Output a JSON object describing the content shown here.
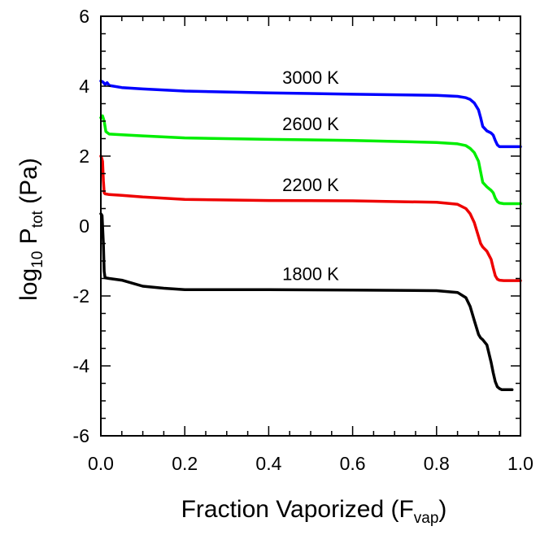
{
  "chart_data": {
    "type": "line",
    "xlim": [
      0.0,
      1.0
    ],
    "ylim": [
      -6,
      6
    ],
    "grid": false,
    "x_ticks": [
      0.0,
      0.2,
      0.4,
      0.6,
      0.8,
      1.0
    ],
    "x_tick_labels": [
      "0.0",
      "0.2",
      "0.4",
      "0.6",
      "0.8",
      "1.0"
    ],
    "y_ticks": [
      -6,
      -4,
      -2,
      0,
      2,
      4,
      6
    ],
    "y_tick_labels": [
      "-6",
      "-4",
      "-2",
      "0",
      "2",
      "4",
      "6"
    ],
    "xlabel": {
      "main": "Fraction Vaporized (F",
      "sub": "vap",
      "end": ")"
    },
    "ylabel": {
      "pre": "log",
      "sub1": "10",
      "mid": " P",
      "sub2": "tot",
      "end": " (Pa)"
    },
    "series": [
      {
        "name": "3000 K",
        "color": "#0000ff",
        "x": [
          0.0,
          0.005,
          0.01,
          0.015,
          0.02,
          0.05,
          0.1,
          0.2,
          0.4,
          0.6,
          0.8,
          0.85,
          0.87,
          0.88,
          0.89,
          0.9,
          0.905,
          0.91,
          0.92,
          0.93,
          0.935,
          0.94,
          0.945,
          0.95,
          1.0
        ],
        "y": [
          4.15,
          4.12,
          4.05,
          4.1,
          4.02,
          3.96,
          3.92,
          3.86,
          3.81,
          3.77,
          3.74,
          3.71,
          3.67,
          3.62,
          3.52,
          3.32,
          3.1,
          2.85,
          2.72,
          2.66,
          2.6,
          2.45,
          2.32,
          2.27,
          2.27
        ]
      },
      {
        "name": "2600 K",
        "color": "#00ee00",
        "x": [
          0.0,
          0.004,
          0.008,
          0.012,
          0.02,
          0.05,
          0.1,
          0.2,
          0.4,
          0.6,
          0.8,
          0.85,
          0.87,
          0.88,
          0.89,
          0.9,
          0.905,
          0.91,
          0.92,
          0.93,
          0.935,
          0.94,
          0.945,
          0.95,
          0.96,
          1.0
        ],
        "y": [
          3.1,
          3.15,
          3.0,
          2.7,
          2.63,
          2.61,
          2.58,
          2.52,
          2.48,
          2.45,
          2.39,
          2.35,
          2.3,
          2.22,
          2.1,
          1.85,
          1.55,
          1.25,
          1.12,
          1.02,
          0.95,
          0.8,
          0.7,
          0.66,
          0.64,
          0.64
        ]
      },
      {
        "name": "2200 K",
        "color": "#ee0000",
        "x": [
          0.0,
          0.002,
          0.004,
          0.006,
          0.008,
          0.01,
          0.02,
          0.05,
          0.1,
          0.2,
          0.4,
          0.6,
          0.8,
          0.85,
          0.87,
          0.88,
          0.89,
          0.9,
          0.905,
          0.91,
          0.92,
          0.93,
          0.935,
          0.94,
          0.945,
          0.95,
          0.96,
          1.0
        ],
        "y": [
          2.0,
          1.95,
          1.85,
          1.3,
          0.95,
          0.92,
          0.9,
          0.88,
          0.83,
          0.76,
          0.73,
          0.72,
          0.68,
          0.62,
          0.5,
          0.35,
          0.1,
          -0.3,
          -0.5,
          -0.6,
          -0.72,
          -0.95,
          -1.2,
          -1.42,
          -1.52,
          -1.55,
          -1.56,
          -1.56
        ]
      },
      {
        "name": "1800 K",
        "color": "#000000",
        "x": [
          0.0,
          0.003,
          0.006,
          0.008,
          0.01,
          0.02,
          0.05,
          0.1,
          0.15,
          0.2,
          0.4,
          0.6,
          0.8,
          0.85,
          0.87,
          0.88,
          0.89,
          0.9,
          0.905,
          0.91,
          0.92,
          0.93,
          0.935,
          0.94,
          0.945,
          0.95,
          0.955,
          0.96,
          0.97,
          0.98
        ],
        "y": [
          0.35,
          0.3,
          -0.5,
          -1.3,
          -1.48,
          -1.5,
          -1.55,
          -1.72,
          -1.78,
          -1.82,
          -1.82,
          -1.83,
          -1.85,
          -1.9,
          -2.05,
          -2.3,
          -2.7,
          -3.1,
          -3.2,
          -3.25,
          -3.4,
          -3.9,
          -4.2,
          -4.45,
          -4.6,
          -4.65,
          -4.68,
          -4.68,
          -4.68,
          -4.68
        ]
      }
    ]
  }
}
